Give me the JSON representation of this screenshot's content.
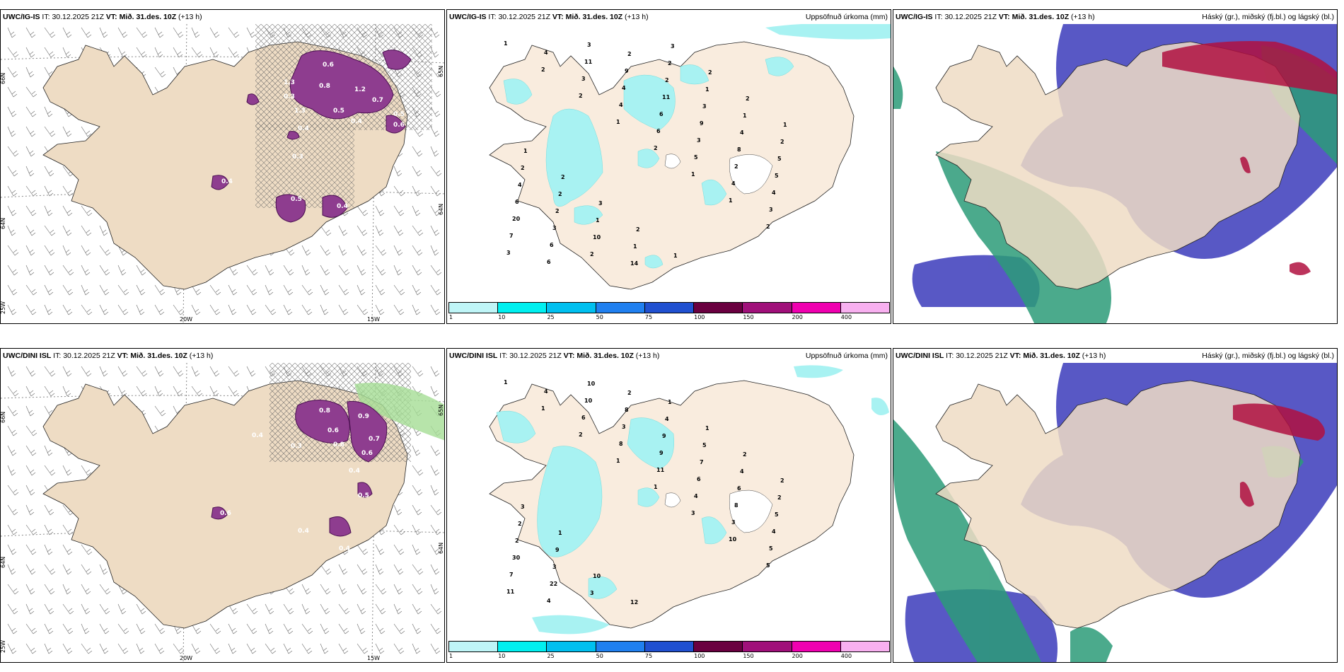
{
  "panels": [
    {
      "id": "p1",
      "model": "UWC/IG-IS",
      "it_label": "IT:",
      "it": "30.12.2025 21Z",
      "vt_label": "VT:",
      "vt": "Mið. 31.des. 10Z",
      "lead": "(+13 h)",
      "right_title": "",
      "axes": {
        "lat_top": "66N",
        "lat_mid": "64N",
        "lat_right": "65N",
        "lat_right2": "64N",
        "lon_a": "20W",
        "lon_b": "15W",
        "lon_left": "25W"
      },
      "labels": [
        "0.6",
        "0.8",
        "1.2",
        "0.7",
        "1.3",
        "0.3",
        "0.5",
        "1.3",
        "0.4",
        "0.5",
        "0.6",
        "0.4",
        "0.5",
        "0.4",
        "0.4",
        "0.3"
      ]
    },
    {
      "id": "p2",
      "model": "UWC/IG-IS",
      "it_label": "IT:",
      "it": "30.12.2025 21Z",
      "vt_label": "VT:",
      "vt": "Mið. 31.des. 10Z",
      "lead": "(+13 h)",
      "right_title": "Uppsöfnuð úrkoma (mm)",
      "labels": [
        "1",
        "2",
        "2",
        "1",
        "2",
        "1",
        "1",
        "2",
        "3",
        "4",
        "3",
        "4",
        "6",
        "5",
        "4",
        "3",
        "7",
        "6",
        "11",
        "4",
        "6",
        "3",
        "2",
        "4",
        "20",
        "6",
        "3",
        "9",
        "11",
        "9",
        "8",
        "5",
        "6",
        "3",
        "2",
        "2",
        "2",
        "3",
        "4",
        "5",
        "4",
        "2",
        "10",
        "14",
        "2",
        "1",
        "1",
        "2",
        "2",
        "2",
        "1",
        "1",
        "3",
        "2",
        "2",
        "1",
        "1",
        "2",
        "3",
        "2",
        "1"
      ]
    },
    {
      "id": "p3",
      "model": "UWC/IG-IS",
      "it_label": "IT:",
      "it": "30.12.2025 21Z",
      "vt_label": "VT:",
      "vt": "Mið. 31.des. 10Z",
      "lead": "(+13 h)",
      "right_title": "Háský (gr.), miðský (fj.bl.) og lágský (bl.)",
      "labels": []
    },
    {
      "id": "p4",
      "model": "UWC/DINI ISL",
      "it_label": "IT:",
      "it": "30.12.2025 21Z",
      "vt_label": "VT:",
      "vt": "Mið. 31.des. 10Z",
      "lead": "(+13 h)",
      "right_title": "",
      "axes": {
        "lat_top": "66N",
        "lat_mid": "64N",
        "lat_right": "65N",
        "lat_right2": "64N",
        "lon_a": "20W",
        "lon_b": "15W",
        "lon_left": "25W"
      },
      "labels": [
        "0.8",
        "0.9",
        "0.6",
        "0.8",
        "0.7",
        "0.6",
        "0.4",
        "0.5",
        "0.4",
        "0.6",
        "0.4",
        "0.4",
        "0.3"
      ]
    },
    {
      "id": "p5",
      "model": "UWC/DINI ISL",
      "it_label": "IT:",
      "it": "30.12.2025 21Z",
      "vt_label": "VT:",
      "vt": "Mið. 31.des. 10Z",
      "lead": "(+13 h)",
      "right_title": "Uppsöfnuð úrkoma (mm)",
      "labels": [
        "1",
        "1",
        "2",
        "1",
        "1",
        "3",
        "10",
        "5",
        "11",
        "4",
        "6",
        "8",
        "11",
        "4",
        "3",
        "5",
        "7",
        "4",
        "10",
        "3",
        "9",
        "6",
        "8",
        "4",
        "30",
        "22",
        "10",
        "8",
        "9",
        "7",
        "6",
        "5",
        "2",
        "3",
        "3",
        "2",
        "4",
        "5",
        "4",
        "2",
        "2",
        "9",
        "10",
        "12",
        "1",
        "1",
        "2",
        "2",
        "3",
        "1"
      ]
    },
    {
      "id": "p6",
      "model": "UWC/DINI ISL",
      "it_label": "IT:",
      "it": "30.12.2025 21Z",
      "vt_label": "VT:",
      "vt": "Mið. 31.des. 10Z",
      "lead": "(+13 h)",
      "right_title": "Háský (gr.), miðský (fj.bl.) og lágský (bl.)",
      "labels": []
    }
  ],
  "colorbar": {
    "ticks": [
      "1",
      "10",
      "25",
      "50",
      "75",
      "100",
      "150",
      "200",
      "400"
    ],
    "colors": [
      "#bff5f7",
      "#00f0f0",
      "#00c0f0",
      "#2080f0",
      "#2050d0",
      "#6a0040",
      "#a0107a",
      "#f000b0",
      "#f8b0f0"
    ]
  },
  "colors": {
    "land": "#eedcc4",
    "land_light": "#f9ecde",
    "precip": "#a8f2f2",
    "ice": "#8e3d8f",
    "high_cloud": "#2c9b78",
    "mid_cloud": "#4a4ac0",
    "low_cloud": "#b01040"
  }
}
